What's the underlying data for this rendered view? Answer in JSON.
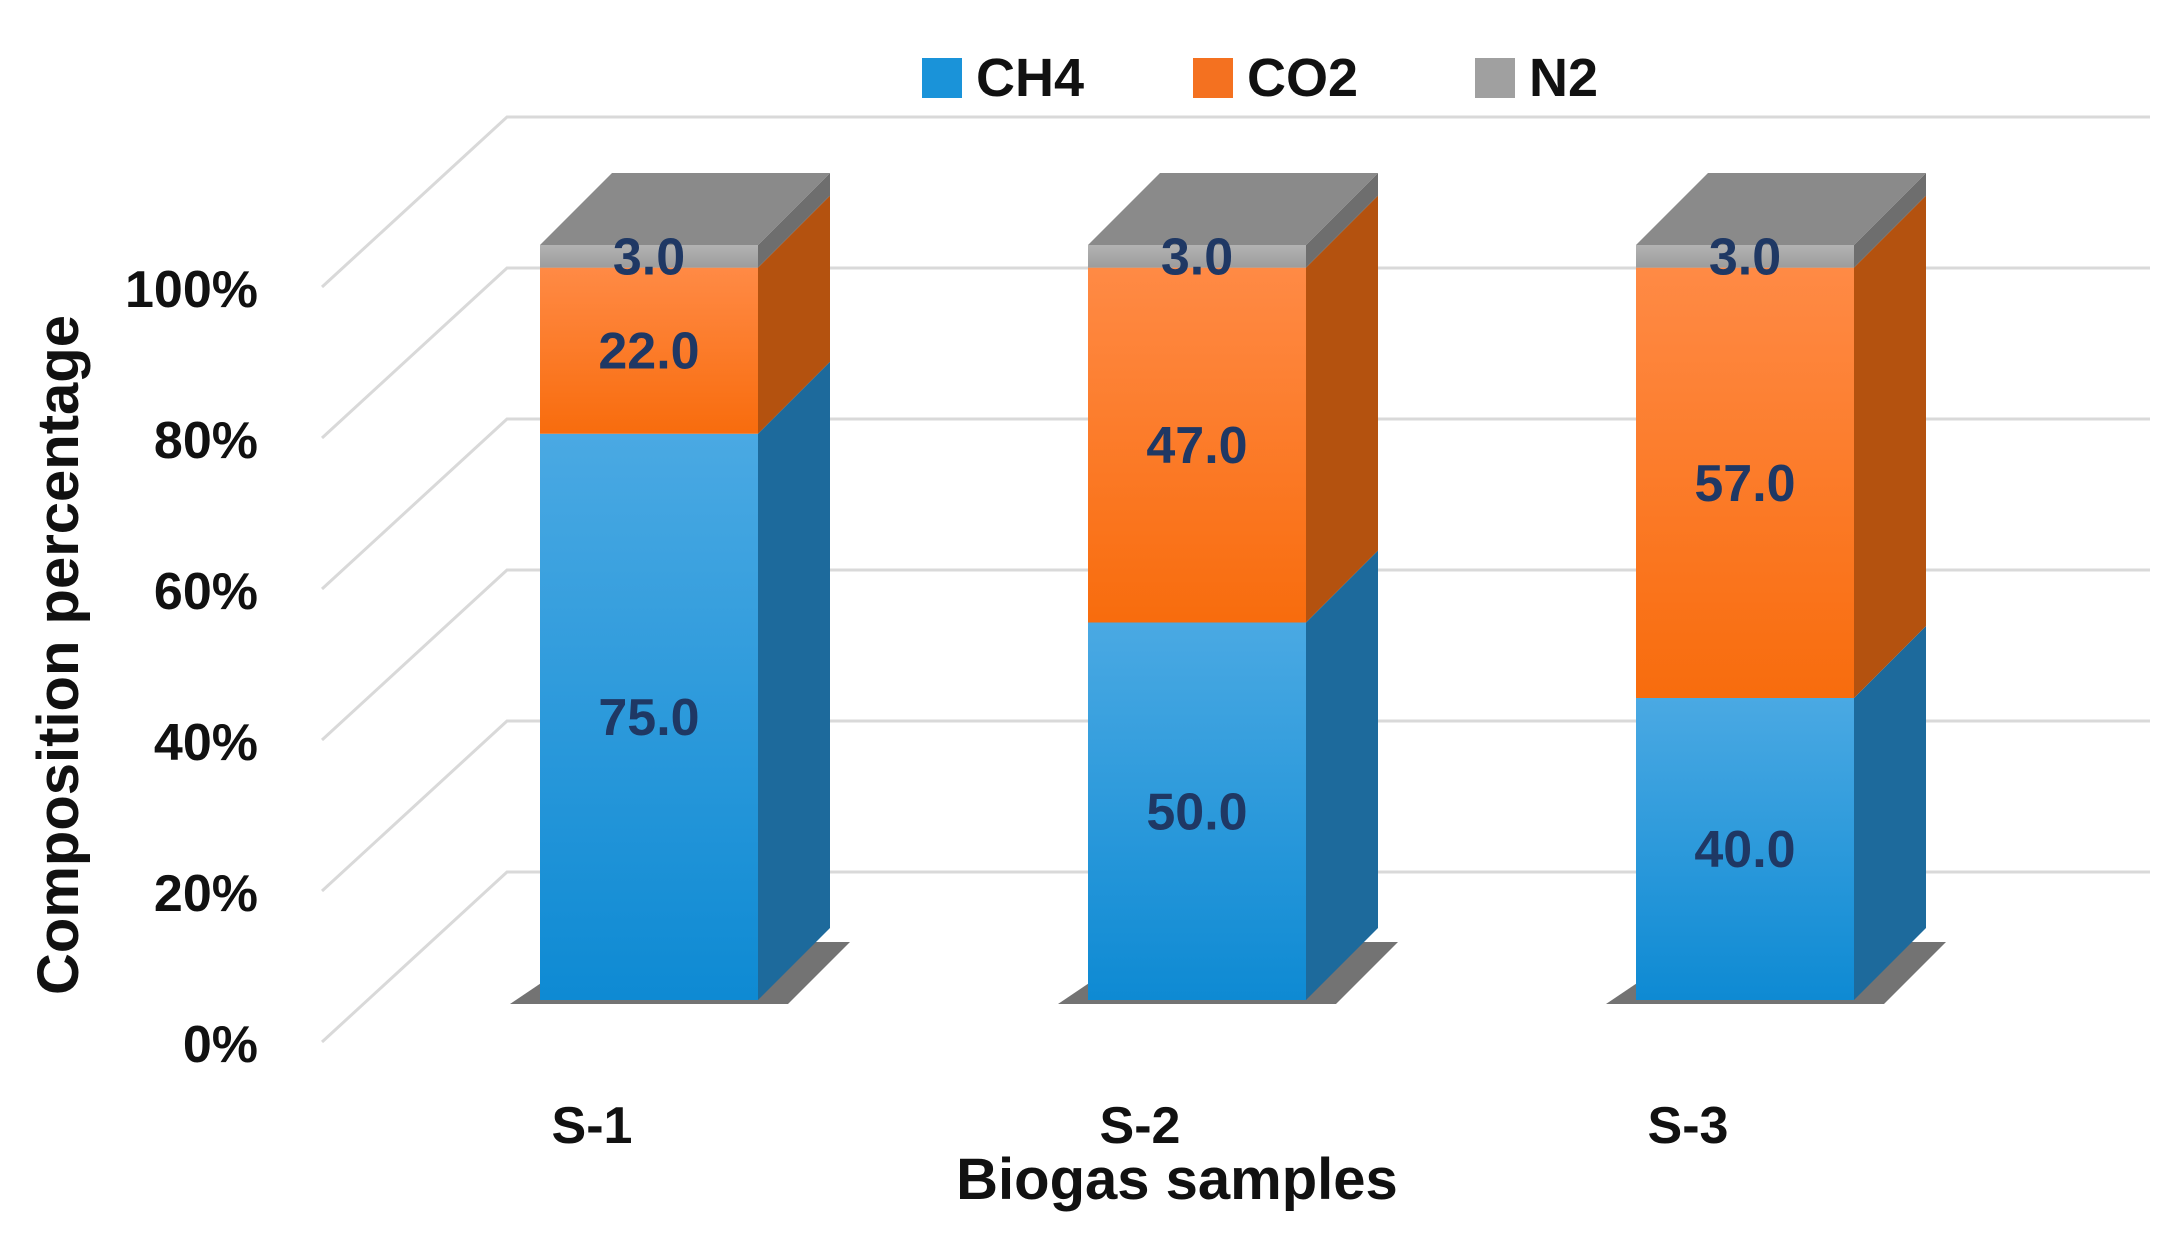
{
  "chart_data": {
    "type": "bar",
    "stacked": true,
    "percent_stacked": true,
    "three_d": true,
    "categories": [
      "S-1",
      "S-2",
      "S-3"
    ],
    "series": [
      {
        "name": "CH4",
        "values": [
          75.0,
          50.0,
          40.0
        ],
        "labels": [
          "75.0",
          "50.0",
          "40.0"
        ]
      },
      {
        "name": "CO2",
        "values": [
          22.0,
          47.0,
          57.0
        ],
        "labels": [
          "22.0",
          "47.0",
          "57.0"
        ]
      },
      {
        "name": "N2",
        "values": [
          3.0,
          3.0,
          3.0
        ],
        "labels": [
          "3.0",
          "3.0",
          "3.0"
        ]
      }
    ],
    "title": "",
    "xlabel": "Biogas samples",
    "ylabel": "Composition percentage",
    "ylim": [
      0,
      100
    ],
    "yticks": [
      "0%",
      "20%",
      "40%",
      "60%",
      "80%",
      "100%"
    ],
    "grid": true,
    "legend_position": "top-center"
  },
  "colors": {
    "CH4": {
      "front_top": "#4aa9e3",
      "front_bottom": "#0e8ad3",
      "side": "#1d6a9c",
      "top": "#7bbfe6"
    },
    "CO2": {
      "front_top": "#ff8a45",
      "front_bottom": "#f86c0d",
      "side": "#b4520f",
      "top": "#ffa166"
    },
    "N2": {
      "front_top": "#b3b3b3",
      "front_bottom": "#9c9c9c",
      "side": "#6e6e6e",
      "top": "#8a8a8a"
    },
    "legend_CH4": "#1a93d9",
    "legend_CO2": "#f47120",
    "legend_N2": "#a0a0a0",
    "gridline": "#d9d9d9",
    "data_label": "#1f3864"
  }
}
